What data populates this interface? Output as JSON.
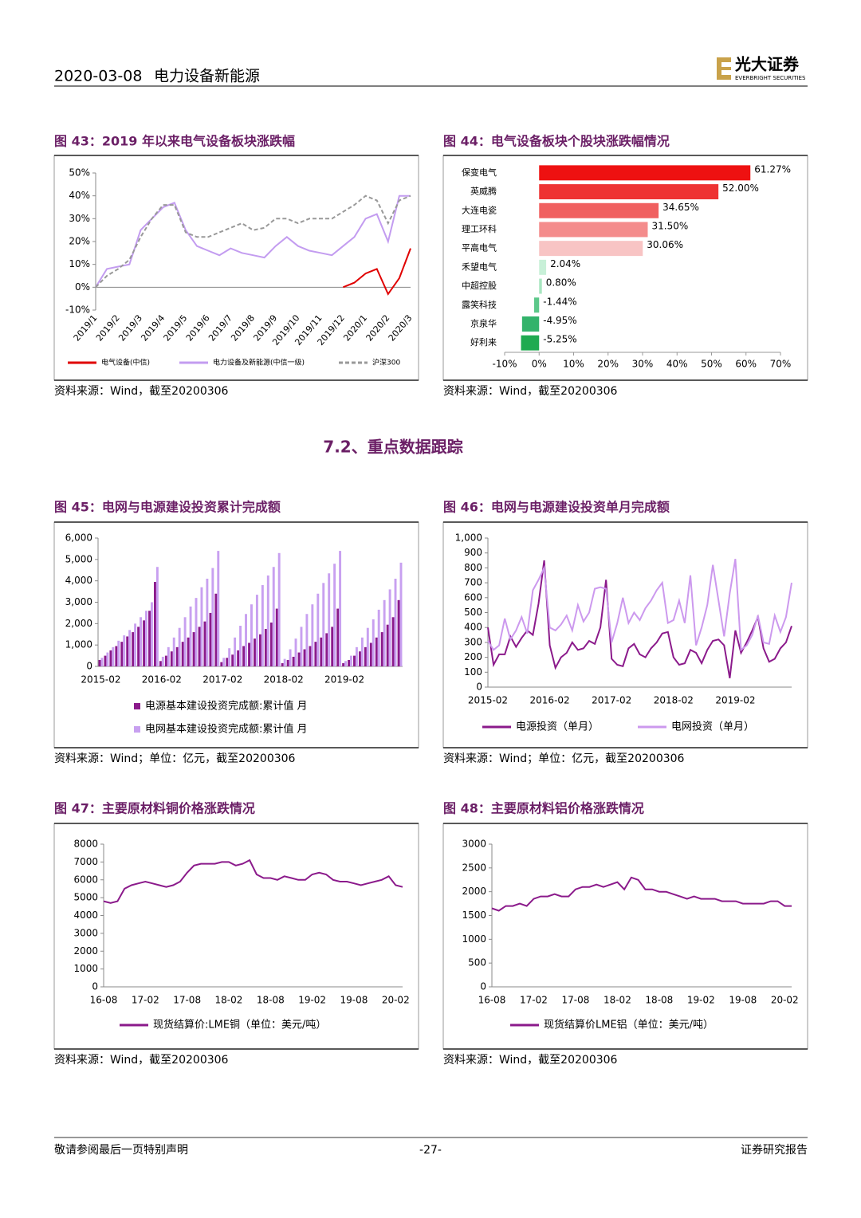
{
  "header": {
    "date": "2020-03-08",
    "sector": "电力设备新能源",
    "brand": "光大证券",
    "brand_en": "EVERBRIGHT SECURITIES"
  },
  "section_title": "7.2、重点数据跟踪",
  "footer": {
    "left": "敬请参阅最后一页特别声明",
    "page": "-27-",
    "right": "证券研究报告"
  },
  "chart_data": [
    {
      "type": "line",
      "title": "图 43：2019 年以来电气设备板块涨跌幅",
      "source": "资料来源：Wind，截至20200306",
      "categories": [
        "2019/1",
        null,
        "2019/2",
        null,
        "2019/3",
        null,
        "2019/4",
        null,
        "2019/5",
        null,
        "2019/6",
        null,
        "2019/7",
        null,
        "2019/8",
        null,
        "2019/9",
        null,
        "2019/10",
        null,
        "2019/11",
        null,
        "2019/12",
        null,
        "2020/1",
        null,
        "2020/2",
        null,
        "2020/3"
      ],
      "series": [
        {
          "name": "电气设备(中信)",
          "color": "#e00000",
          "values": [
            null,
            null,
            null,
            null,
            null,
            null,
            null,
            null,
            null,
            null,
            null,
            null,
            null,
            null,
            null,
            null,
            null,
            null,
            null,
            null,
            null,
            null,
            0,
            2,
            6,
            8,
            -3,
            4,
            17
          ]
        },
        {
          "name": "电力设备及新能源(中信一级)",
          "color": "#c39cf0",
          "values": [
            0,
            8,
            9,
            10,
            25,
            30,
            35,
            37,
            25,
            18,
            16,
            14,
            17,
            15,
            14,
            13,
            18,
            22,
            18,
            16,
            15,
            14,
            18,
            22,
            30,
            32,
            20,
            40,
            40
          ]
        },
        {
          "name": "沪深300",
          "color": "#999999",
          "dash": true,
          "values": [
            0,
            5,
            8,
            12,
            22,
            30,
            36,
            36,
            24,
            22,
            22,
            24,
            26,
            28,
            25,
            26,
            30,
            30,
            28,
            30,
            30,
            30,
            33,
            36,
            40,
            38,
            28,
            38,
            40
          ]
        }
      ],
      "ylim": [
        -10,
        50
      ],
      "yticks": [
        {
          "value": -10,
          "label": "-10%"
        },
        {
          "value": 0,
          "label": "0%"
        },
        {
          "value": 10,
          "label": "10%"
        },
        {
          "value": 20,
          "label": "20%"
        },
        {
          "value": 30,
          "label": "30%"
        },
        {
          "value": 40,
          "label": "40%"
        },
        {
          "value": 50,
          "label": "50%"
        }
      ]
    },
    {
      "type": "barh",
      "title": "图 44：电气设备板块个股块涨跌幅情况",
      "source": "资料来源：Wind，截至20200306",
      "categories": [
        "保变电气",
        "英威腾",
        "大连电瓷",
        "理工环科",
        "平高电气",
        "禾望电气",
        "中超控股",
        "露笑科技",
        "京泉华",
        "好利来"
      ],
      "values": [
        61.27,
        52.0,
        34.65,
        31.5,
        30.06,
        2.04,
        0.8,
        -1.44,
        -4.95,
        -5.25
      ],
      "value_labels": [
        "61.27%",
        "52.00%",
        "34.65%",
        "31.50%",
        "30.06%",
        "2.04%",
        "0.80%",
        "-1.44%",
        "-4.95%",
        "-5.25%"
      ],
      "colors": [
        "#ee1111",
        "#ee3333",
        "#f06060",
        "#f48c8c",
        "#f8c4c4",
        "#c8f0d8",
        "#a8e6c0",
        "#5cc88a",
        "#33b36b",
        "#1faa50"
      ],
      "xlim": [
        -10,
        70
      ],
      "xticks": [
        {
          "value": -10,
          "label": "-10%"
        },
        {
          "value": 0,
          "label": "0%"
        },
        {
          "value": 10,
          "label": "10%"
        },
        {
          "value": 20,
          "label": "20%"
        },
        {
          "value": 30,
          "label": "30%"
        },
        {
          "value": 40,
          "label": "40%"
        },
        {
          "value": 50,
          "label": "50%"
        },
        {
          "value": 60,
          "label": "60%"
        },
        {
          "value": 70,
          "label": "70%"
        }
      ]
    },
    {
      "type": "bar",
      "title": "图 45：电网与电源建设投资累计完成额",
      "source": "资料来源：Wind；单位：亿元，截至20200306",
      "categories": [
        "2015-02",
        null,
        null,
        null,
        null,
        null,
        null,
        null,
        null,
        null,
        null,
        "2016-02",
        null,
        null,
        null,
        null,
        null,
        null,
        null,
        null,
        null,
        null,
        "2017-02",
        null,
        null,
        null,
        null,
        null,
        null,
        null,
        null,
        null,
        null,
        "2018-02",
        null,
        null,
        null,
        null,
        null,
        null,
        null,
        null,
        null,
        null,
        "2019-02",
        null,
        null,
        null,
        null,
        null,
        null,
        null,
        null,
        null,
        null
      ],
      "series": [
        {
          "name": "电源基本建设投资完成额:累计值 月",
          "color": "#8b1a8b",
          "values": [
            300,
            500,
            750,
            950,
            1150,
            1400,
            1600,
            1850,
            2150,
            2600,
            3950,
            250,
            500,
            700,
            900,
            1150,
            1350,
            1600,
            1850,
            2100,
            2500,
            3400,
            200,
            400,
            550,
            750,
            950,
            1100,
            1300,
            1500,
            1750,
            2050,
            2700,
            150,
            300,
            450,
            650,
            800,
            950,
            1150,
            1350,
            1550,
            1850,
            2700,
            150,
            300,
            500,
            700,
            900,
            1100,
            1350,
            1600,
            1950,
            2300,
            3100
          ]
        },
        {
          "name": "电网基本建设投资完成额:累计值 月",
          "color": "#c8a0f0",
          "values": [
            400,
            650,
            900,
            1200,
            1450,
            1700,
            2000,
            2300,
            2600,
            3000,
            4650,
            450,
            900,
            1350,
            1800,
            2300,
            2800,
            3200,
            3700,
            4100,
            4600,
            5400,
            400,
            850,
            1350,
            1900,
            2450,
            2900,
            3350,
            3800,
            4250,
            4650,
            5300,
            350,
            800,
            1300,
            1850,
            2450,
            2900,
            3400,
            3900,
            4350,
            4800,
            5400,
            250,
            500,
            900,
            1350,
            1800,
            2200,
            2650,
            3100,
            3600,
            4100,
            4850
          ]
        }
      ],
      "ylim": [
        0,
        6000
      ],
      "yticks": [
        0,
        {
          "value": 1000,
          "label": "1,000"
        },
        {
          "value": 2000,
          "label": "2,000"
        },
        {
          "value": 3000,
          "label": "3,000"
        },
        {
          "value": 4000,
          "label": "4,000"
        },
        {
          "value": 5000,
          "label": "5,000"
        },
        {
          "value": 6000,
          "label": "6,000"
        }
      ]
    },
    {
      "type": "line",
      "title": "图 46：电网与电源建设投资单月完成额",
      "source": "资料来源：Wind；单位：亿元，截至20200306",
      "categories": [
        "2015-02",
        null,
        null,
        null,
        null,
        null,
        null,
        null,
        null,
        null,
        null,
        "2016-02",
        null,
        null,
        null,
        null,
        null,
        null,
        null,
        null,
        null,
        null,
        "2017-02",
        null,
        null,
        null,
        null,
        null,
        null,
        null,
        null,
        null,
        null,
        "2018-02",
        null,
        null,
        null,
        null,
        null,
        null,
        null,
        null,
        null,
        null,
        "2019-02",
        null,
        null,
        null,
        null,
        null,
        null,
        null,
        null,
        null,
        null
      ],
      "series": [
        {
          "name": "电源投资（单月）",
          "color": "#8b1a8b",
          "values": [
            400,
            150,
            220,
            220,
            340,
            270,
            330,
            380,
            350,
            560,
            850,
            280,
            130,
            200,
            230,
            300,
            250,
            260,
            310,
            290,
            400,
            720,
            190,
            150,
            140,
            260,
            290,
            220,
            200,
            260,
            300,
            360,
            370,
            200,
            150,
            160,
            250,
            230,
            160,
            250,
            310,
            320,
            280,
            60,
            380,
            230,
            300,
            380,
            470,
            260,
            170,
            190,
            260,
            300,
            410
          ]
        },
        {
          "name": "电网投资（单月）",
          "color": "#cc99ee",
          "values": [
            310,
            250,
            280,
            460,
            320,
            380,
            470,
            360,
            650,
            720,
            800,
            400,
            380,
            420,
            480,
            380,
            550,
            440,
            500,
            660,
            670,
            660,
            300,
            430,
            600,
            430,
            500,
            450,
            530,
            580,
            650,
            700,
            430,
            450,
            580,
            430,
            750,
            280,
            400,
            550,
            820,
            580,
            340,
            630,
            860,
            250,
            280,
            350,
            480,
            300,
            290,
            480,
            370,
            470,
            700
          ]
        }
      ],
      "ylim": [
        0,
        1000
      ],
      "yticks": [
        0,
        100,
        200,
        300,
        400,
        500,
        600,
        700,
        800,
        900,
        {
          "value": 1000,
          "label": "1,000"
        }
      ]
    },
    {
      "type": "line",
      "title": "图 47：主要原材料铜价格涨跌情况",
      "source": "资料来源：Wind，截至20200306",
      "categories": [
        "16-08",
        null,
        null,
        null,
        null,
        null,
        "17-02",
        null,
        null,
        null,
        null,
        null,
        "17-08",
        null,
        null,
        null,
        null,
        null,
        "18-02",
        null,
        null,
        null,
        null,
        null,
        "18-08",
        null,
        null,
        null,
        null,
        null,
        "19-02",
        null,
        null,
        null,
        null,
        null,
        "19-08",
        null,
        null,
        null,
        null,
        null,
        "20-02",
        null
      ],
      "series": [
        {
          "name": "现货结算价:LME铜（单位：美元/吨）",
          "color": "#8b1a8b",
          "values": [
            4800,
            4700,
            4800,
            5500,
            5700,
            5800,
            5900,
            5800,
            5700,
            5600,
            5700,
            5900,
            6400,
            6800,
            6900,
            6900,
            6900,
            7000,
            7000,
            6800,
            6900,
            7100,
            6300,
            6100,
            6100,
            6000,
            6200,
            6100,
            6000,
            6000,
            6300,
            6400,
            6300,
            6000,
            5900,
            5900,
            5800,
            5700,
            5800,
            5900,
            6000,
            6200,
            5700,
            5600
          ]
        }
      ],
      "ylim": [
        0,
        8000
      ],
      "yticks": [
        0,
        1000,
        2000,
        3000,
        4000,
        5000,
        6000,
        7000,
        8000
      ]
    },
    {
      "type": "line",
      "title": "图 48：主要原材料铝价格涨跌情况",
      "source": "资料来源：Wind，截至20200306",
      "categories": [
        "16-08",
        null,
        null,
        null,
        null,
        null,
        "17-02",
        null,
        null,
        null,
        null,
        null,
        "17-08",
        null,
        null,
        null,
        null,
        null,
        "18-02",
        null,
        null,
        null,
        null,
        null,
        "18-08",
        null,
        null,
        null,
        null,
        null,
        "19-02",
        null,
        null,
        null,
        null,
        null,
        "19-08",
        null,
        null,
        null,
        null,
        null,
        "20-02",
        null
      ],
      "series": [
        {
          "name": "现货结算价LME铝（单位：美元/吨）",
          "color": "#8b1a8b",
          "values": [
            1650,
            1600,
            1700,
            1700,
            1750,
            1700,
            1850,
            1900,
            1900,
            1950,
            1900,
            1900,
            2050,
            2100,
            2100,
            2150,
            2100,
            2150,
            2200,
            2050,
            2300,
            2250,
            2050,
            2050,
            2000,
            2000,
            1950,
            1900,
            1850,
            1900,
            1850,
            1850,
            1850,
            1800,
            1800,
            1800,
            1750,
            1750,
            1750,
            1750,
            1800,
            1800,
            1700,
            1700
          ]
        }
      ],
      "ylim": [
        0,
        3000
      ],
      "yticks": [
        0,
        500,
        1000,
        1500,
        2000,
        2500,
        3000
      ]
    }
  ]
}
